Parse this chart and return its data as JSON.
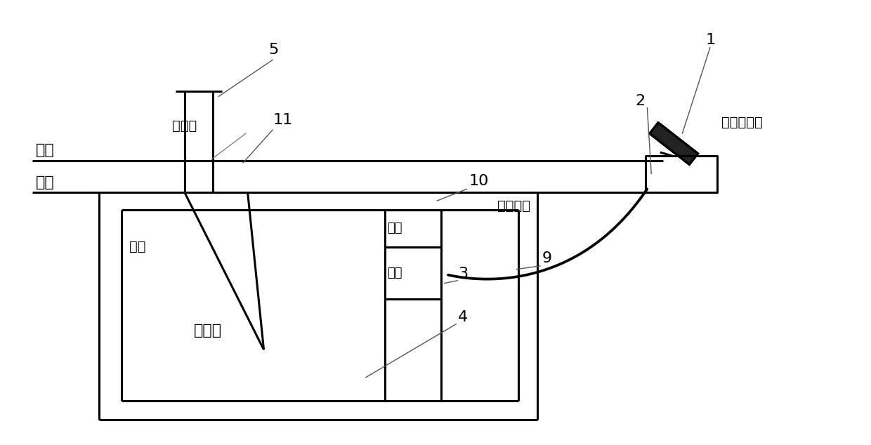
{
  "bg_color": "#ffffff",
  "line_color": "#000000",
  "fig_width": 12.4,
  "fig_height": 6.34,
  "labels": {
    "river": "河水",
    "sediment": "底泥",
    "water_inlet": "入水口",
    "cathode": "阴极",
    "anode": "正极",
    "power": "电源",
    "tank": "储水罐",
    "oxygen_outlet": "氧气出口",
    "solar": "太阳能供电",
    "num1": "1",
    "num2": "2",
    "num3": "3",
    "num4": "4",
    "num5": "5",
    "num9": "9",
    "num10": "10",
    "num11": "11"
  },
  "font_size_large": 16,
  "font_size_medium": 14,
  "font_size_small": 13
}
